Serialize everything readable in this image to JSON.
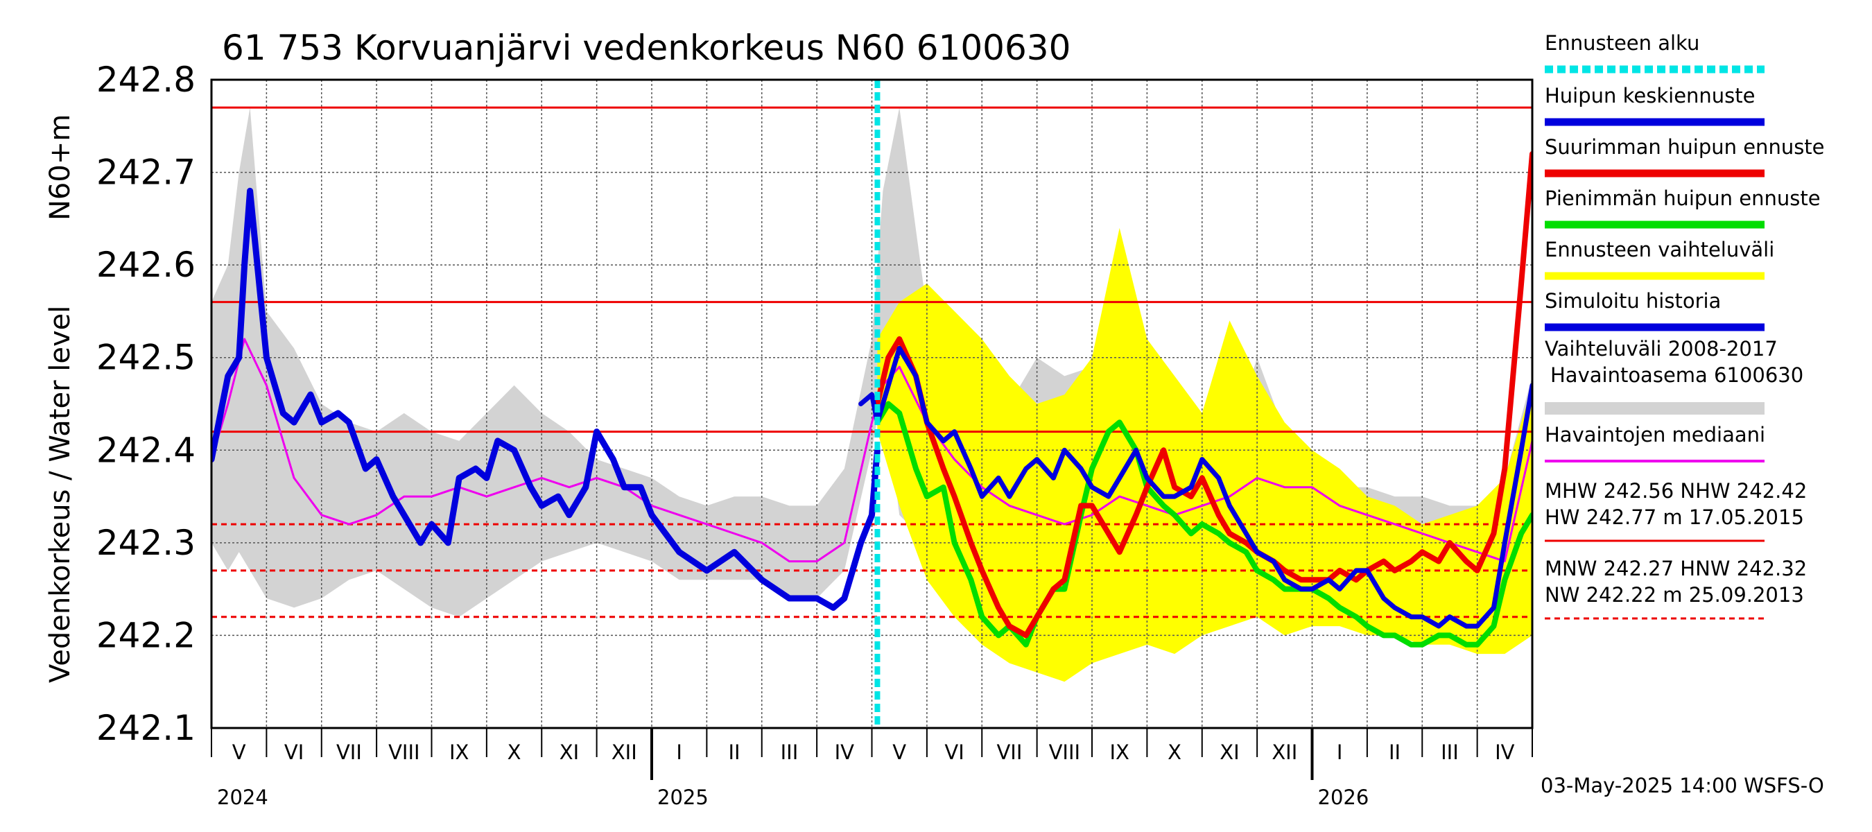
{
  "chart_data": {
    "type": "line",
    "title": "61 753 Korvuanjärvi vedenkorkeus N60 6100630",
    "ylabel_left": "Vedenkorkeus / Water level",
    "ylabel_right": "N60+m",
    "ylim": [
      242.1,
      242.8
    ],
    "yticks": [
      "242.1",
      "242.2",
      "242.3",
      "242.4",
      "242.5",
      "242.6",
      "242.7",
      "242.8"
    ],
    "xlim_months": [
      0,
      24
    ],
    "month_labels": [
      "V",
      "VI",
      "VII",
      "VIII",
      "IX",
      "X",
      "XI",
      "XII",
      "I",
      "II",
      "III",
      "IV",
      "V",
      "VI",
      "VII",
      "VIII",
      "IX",
      "X",
      "XI",
      "XII",
      "I",
      "II",
      "III",
      "IV"
    ],
    "year_labels": [
      {
        "text": "2024",
        "month": 0
      },
      {
        "text": "2025",
        "month": 8
      },
      {
        "text": "2026",
        "month": 20
      }
    ],
    "forecast_start_month": 12.1,
    "reference_lines": [
      {
        "name": "HW",
        "value": 242.77,
        "style": "solid"
      },
      {
        "name": "MHW",
        "value": 242.56,
        "style": "solid"
      },
      {
        "name": "NHW",
        "value": 242.42,
        "style": "solid"
      },
      {
        "name": "HNW",
        "value": 242.32,
        "style": "dashed"
      },
      {
        "name": "MNW",
        "value": 242.27,
        "style": "dashed"
      },
      {
        "name": "NW",
        "value": 242.22,
        "style": "dashed"
      }
    ],
    "colors": {
      "forecast_start": "#00e5e5",
      "mean_peak": "#0000dd",
      "max_peak": "#ee0000",
      "min_peak": "#00dd00",
      "forecast_range": "#ffff00",
      "simulated_history": "#0000dd",
      "historical_range": "#d3d3d3",
      "median": "#ee00ee",
      "reference": "#ee0000"
    },
    "series": [
      {
        "name": "Vaihteluväli 2008-2017 Havaintoasema 6100630",
        "kind": "band",
        "x": [
          0,
          0.3,
          0.5,
          0.7,
          1,
          1.5,
          2,
          2.5,
          3,
          3.5,
          4,
          4.5,
          5,
          5.5,
          6,
          6.5,
          7,
          7.5,
          8,
          8.5,
          9,
          9.5,
          10,
          10.5,
          11,
          11.5,
          12,
          12.2,
          12.5,
          13,
          13.5,
          14,
          14.5,
          15,
          15.5,
          16,
          16.5,
          17,
          17.5,
          18,
          18.5,
          19,
          19.5,
          20,
          20.5,
          21,
          21.5,
          22,
          22.5,
          23,
          23.5,
          24
        ],
        "lower": [
          242.3,
          242.27,
          242.29,
          242.27,
          242.24,
          242.23,
          242.24,
          242.26,
          242.27,
          242.25,
          242.23,
          242.22,
          242.24,
          242.26,
          242.28,
          242.29,
          242.3,
          242.29,
          242.28,
          242.26,
          242.26,
          242.26,
          242.26,
          242.24,
          242.24,
          242.27,
          242.4,
          242.47,
          242.33,
          242.3,
          242.27,
          242.25,
          242.24,
          242.24,
          242.23,
          242.24,
          242.23,
          242.24,
          242.25,
          242.25,
          242.24,
          242.23,
          242.23,
          242.23,
          242.24,
          242.24,
          242.23,
          242.22,
          242.22,
          242.24,
          242.27,
          242.32
        ],
        "upper": [
          242.56,
          242.6,
          242.7,
          242.77,
          242.55,
          242.51,
          242.45,
          242.43,
          242.42,
          242.44,
          242.42,
          242.41,
          242.44,
          242.47,
          242.44,
          242.42,
          242.39,
          242.38,
          242.37,
          242.35,
          242.34,
          242.35,
          242.35,
          242.34,
          242.34,
          242.38,
          242.52,
          242.68,
          242.77,
          242.55,
          242.52,
          242.47,
          242.45,
          242.5,
          242.48,
          242.49,
          242.47,
          242.5,
          242.44,
          242.38,
          242.4,
          242.5,
          242.42,
          242.38,
          242.36,
          242.36,
          242.35,
          242.35,
          242.34,
          242.34,
          242.37,
          242.48
        ]
      },
      {
        "name": "Ennusteen vaihteluväli",
        "kind": "band",
        "x": [
          12.1,
          12.5,
          13,
          13.5,
          14,
          14.5,
          15,
          15.5,
          16,
          16.5,
          17,
          17.5,
          18,
          18.5,
          19,
          19.5,
          20,
          20.5,
          21,
          21.5,
          22,
          22.5,
          23,
          23.5,
          24
        ],
        "lower": [
          242.42,
          242.34,
          242.26,
          242.22,
          242.19,
          242.17,
          242.16,
          242.15,
          242.17,
          242.18,
          242.19,
          242.18,
          242.2,
          242.21,
          242.22,
          242.2,
          242.21,
          242.21,
          242.2,
          242.2,
          242.19,
          242.19,
          242.18,
          242.18,
          242.2
        ],
        "upper": [
          242.52,
          242.56,
          242.58,
          242.55,
          242.52,
          242.48,
          242.45,
          242.46,
          242.5,
          242.64,
          242.52,
          242.48,
          242.44,
          242.54,
          242.48,
          242.43,
          242.4,
          242.38,
          242.35,
          242.34,
          242.32,
          242.33,
          242.34,
          242.37,
          242.47
        ]
      },
      {
        "name": "Havaintojen mediaani",
        "kind": "line",
        "x": [
          0,
          0.3,
          0.6,
          1,
          1.5,
          2,
          2.5,
          3,
          3.5,
          4,
          4.5,
          5,
          5.5,
          6,
          6.5,
          7,
          7.5,
          8,
          8.5,
          9,
          9.5,
          10,
          10.5,
          11,
          11.5,
          12,
          12.2,
          12.5,
          13,
          13.5,
          14,
          14.5,
          15,
          15.5,
          16,
          16.5,
          17,
          17.5,
          18,
          18.5,
          19,
          19.5,
          20,
          20.5,
          21,
          21.5,
          22,
          22.5,
          23,
          23.5,
          24
        ],
        "values": [
          242.39,
          242.45,
          242.52,
          242.47,
          242.37,
          242.33,
          242.32,
          242.33,
          242.35,
          242.35,
          242.36,
          242.35,
          242.36,
          242.37,
          242.36,
          242.37,
          242.36,
          242.34,
          242.33,
          242.32,
          242.31,
          242.3,
          242.28,
          242.28,
          242.3,
          242.43,
          242.47,
          242.49,
          242.43,
          242.39,
          242.36,
          242.34,
          242.33,
          242.32,
          242.33,
          242.35,
          242.34,
          242.33,
          242.34,
          242.35,
          242.37,
          242.36,
          242.36,
          242.34,
          242.33,
          242.32,
          242.31,
          242.3,
          242.29,
          242.28,
          242.41
        ]
      },
      {
        "name": "Simuloitu historia",
        "kind": "line",
        "x": [
          0,
          0.3,
          0.5,
          0.6,
          0.7,
          0.8,
          1,
          1.3,
          1.5,
          1.8,
          2,
          2.3,
          2.5,
          2.8,
          3,
          3.3,
          3.5,
          3.8,
          4,
          4.3,
          4.5,
          4.8,
          5,
          5.2,
          5.5,
          5.8,
          6,
          6.3,
          6.5,
          6.8,
          7,
          7.3,
          7.5,
          7.8,
          8,
          8.5,
          9,
          9.5,
          10,
          10.5,
          11,
          11.3,
          11.5,
          11.8,
          12,
          12.1
        ],
        "values": [
          242.39,
          242.48,
          242.5,
          242.6,
          242.68,
          242.62,
          242.5,
          242.44,
          242.43,
          242.46,
          242.43,
          242.44,
          242.43,
          242.38,
          242.39,
          242.35,
          242.33,
          242.3,
          242.32,
          242.3,
          242.37,
          242.38,
          242.37,
          242.41,
          242.4,
          242.36,
          242.34,
          242.35,
          242.33,
          242.36,
          242.42,
          242.39,
          242.36,
          242.36,
          242.33,
          242.29,
          242.27,
          242.29,
          242.26,
          242.24,
          242.24,
          242.23,
          242.24,
          242.3,
          242.33,
          242.4
        ]
      },
      {
        "name": "Huipun keskiennuste",
        "kind": "line",
        "x": [
          11.8,
          12,
          12.1,
          12.3,
          12.5,
          12.8,
          13,
          13.3,
          13.5,
          13.8,
          14,
          14.3,
          14.5,
          14.8,
          15,
          15.3,
          15.5,
          15.8,
          16,
          16.3,
          16.5,
          16.8,
          17,
          17.3,
          17.5,
          17.8,
          18,
          18.3,
          18.5,
          18.8,
          19,
          19.3,
          19.5,
          19.8,
          20,
          20.3,
          20.5,
          20.8,
          21,
          21.3,
          21.5,
          21.8,
          22,
          22.3,
          22.5,
          22.8,
          23,
          23.3,
          23.5,
          23.8,
          24
        ],
        "values": [
          242.45,
          242.46,
          242.43,
          242.47,
          242.51,
          242.48,
          242.43,
          242.41,
          242.42,
          242.38,
          242.35,
          242.37,
          242.35,
          242.38,
          242.39,
          242.37,
          242.4,
          242.38,
          242.36,
          242.35,
          242.37,
          242.4,
          242.37,
          242.35,
          242.35,
          242.36,
          242.39,
          242.37,
          242.34,
          242.31,
          242.29,
          242.28,
          242.26,
          242.25,
          242.25,
          242.26,
          242.25,
          242.27,
          242.27,
          242.24,
          242.23,
          242.22,
          242.22,
          242.21,
          242.22,
          242.21,
          242.21,
          242.23,
          242.3,
          242.4,
          242.47
        ]
      },
      {
        "name": "Suurimman huipun ennuste",
        "kind": "line",
        "x": [
          12.1,
          12.3,
          12.5,
          12.8,
          13,
          13.3,
          13.5,
          13.8,
          14,
          14.3,
          14.5,
          14.8,
          15,
          15.3,
          15.5,
          15.8,
          16,
          16.3,
          16.5,
          16.8,
          17,
          17.3,
          17.5,
          17.8,
          18,
          18.3,
          18.5,
          18.8,
          19,
          19.3,
          19.5,
          19.8,
          20,
          20.3,
          20.5,
          20.8,
          21,
          21.3,
          21.5,
          21.8,
          22,
          22.3,
          22.5,
          22.8,
          23,
          23.3,
          23.5,
          23.8,
          24
        ],
        "values": [
          242.45,
          242.5,
          242.52,
          242.48,
          242.43,
          242.38,
          242.35,
          242.3,
          242.27,
          242.23,
          242.21,
          242.2,
          242.22,
          242.25,
          242.26,
          242.34,
          242.34,
          242.31,
          242.29,
          242.33,
          242.36,
          242.4,
          242.36,
          242.35,
          242.37,
          242.33,
          242.31,
          242.3,
          242.29,
          242.28,
          242.27,
          242.26,
          242.26,
          242.26,
          242.27,
          242.26,
          242.27,
          242.28,
          242.27,
          242.28,
          242.29,
          242.28,
          242.3,
          242.28,
          242.27,
          242.31,
          242.38,
          242.58,
          242.72
        ]
      },
      {
        "name": "Pienimmän huipun ennuste",
        "kind": "line",
        "x": [
          12.1,
          12.3,
          12.5,
          12.8,
          13,
          13.3,
          13.5,
          13.8,
          14,
          14.3,
          14.5,
          14.8,
          15,
          15.3,
          15.5,
          15.8,
          16,
          16.3,
          16.5,
          16.8,
          17,
          17.3,
          17.5,
          17.8,
          18,
          18.3,
          18.5,
          18.8,
          19,
          19.3,
          19.5,
          19.8,
          20,
          20.3,
          20.5,
          20.8,
          21,
          21.3,
          21.5,
          21.8,
          22,
          22.3,
          22.5,
          22.8,
          23,
          23.3,
          23.5,
          23.8,
          24
        ],
        "values": [
          242.43,
          242.45,
          242.44,
          242.38,
          242.35,
          242.36,
          242.3,
          242.26,
          242.22,
          242.2,
          242.21,
          242.19,
          242.22,
          242.25,
          242.25,
          242.33,
          242.38,
          242.42,
          242.43,
          242.4,
          242.36,
          242.34,
          242.33,
          242.31,
          242.32,
          242.31,
          242.3,
          242.29,
          242.27,
          242.26,
          242.25,
          242.25,
          242.25,
          242.24,
          242.23,
          242.22,
          242.21,
          242.2,
          242.2,
          242.19,
          242.19,
          242.2,
          242.2,
          242.19,
          242.19,
          242.21,
          242.26,
          242.31,
          242.33
        ]
      }
    ],
    "legend": [
      {
        "label": "Ennusteen alku",
        "color": "#00e5e5",
        "style": "dashed"
      },
      {
        "label": "Huipun keskiennuste",
        "color": "#0000dd",
        "style": "solid"
      },
      {
        "label": "Suurimman huipun ennuste",
        "color": "#ee0000",
        "style": "solid"
      },
      {
        "label": "Pienimmän huipun ennuste",
        "color": "#00dd00",
        "style": "solid"
      },
      {
        "label": "Ennusteen vaihteluväli",
        "color": "#ffff00",
        "style": "solid"
      },
      {
        "label": "Simuloitu historia",
        "color": "#0000dd",
        "style": "solid"
      },
      {
        "label": "Vaihteluväli 2008-2017",
        "label2": "Havaintoasema 6100630",
        "color": "#d3d3d3",
        "style": "solid"
      },
      {
        "label": "Havaintojen mediaani",
        "color": "#ee00ee",
        "style": "solid"
      }
    ],
    "stats": [
      {
        "line1": "MHW 242.56 NHW 242.42",
        "line2": "HW 242.77 m 17.05.2015",
        "color": "#ee0000",
        "style": "solid"
      },
      {
        "line1": "MNW 242.27 HNW 242.32",
        "line2": "NW 242.22 m 25.09.2013",
        "color": "#ee0000",
        "style": "dashed"
      }
    ],
    "footer": "03-May-2025 14:00 WSFS-O"
  }
}
